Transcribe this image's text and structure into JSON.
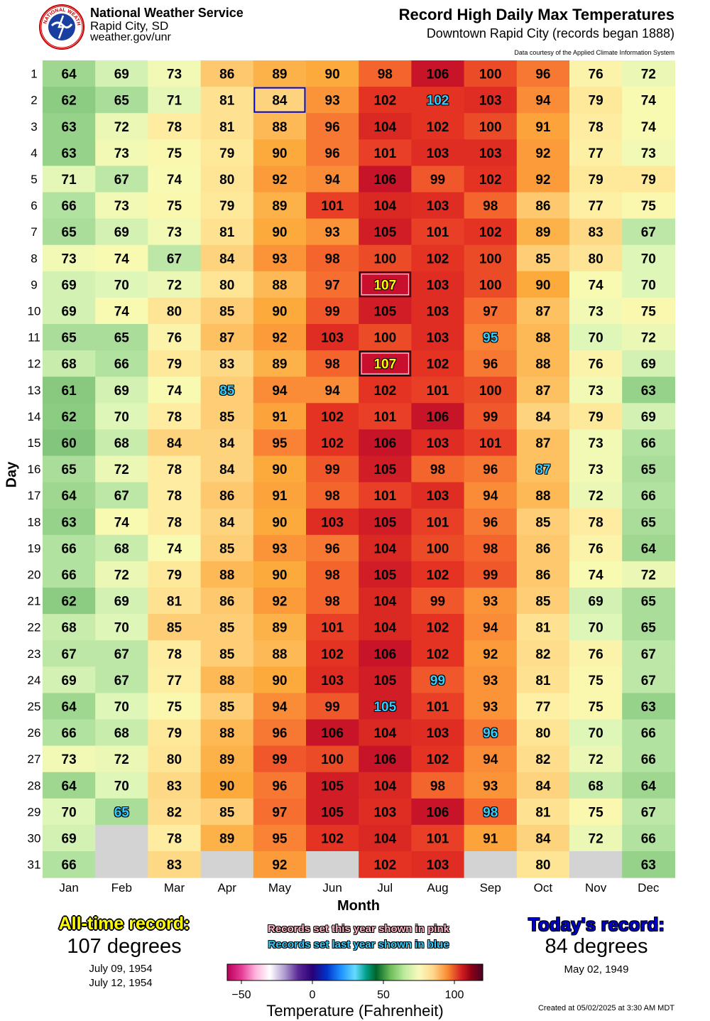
{
  "header": {
    "org_name": "National Weather Service",
    "office": "Rapid City, SD",
    "website": "weather.gov/unr",
    "logo_text": "NATIONAL WEATHER SERVICE",
    "title": "Record High Daily Max Temperatures",
    "subtitle": "Downtown Rapid City (records began 1888)",
    "credit": "Data courtesy of the Applied Climate Information System"
  },
  "chart_data": {
    "type": "heatmap",
    "title": "Record High Daily Max Temperatures",
    "subtitle": "Downtown Rapid City (records began 1888)",
    "xlabel": "Month",
    "ylabel": "Day",
    "months": [
      "Jan",
      "Feb",
      "Mar",
      "Apr",
      "May",
      "Jun",
      "Jul",
      "Aug",
      "Sep",
      "Oct",
      "Nov",
      "Dec"
    ],
    "days": [
      "1",
      "2",
      "3",
      "4",
      "5",
      "6",
      "7",
      "8",
      "9",
      "10",
      "11",
      "12",
      "13",
      "14",
      "15",
      "16",
      "17",
      "18",
      "19",
      "20",
      "21",
      "22",
      "23",
      "24",
      "25",
      "26",
      "27",
      "28",
      "29",
      "30",
      "31"
    ],
    "values": [
      [
        64,
        69,
        73,
        86,
        89,
        90,
        98,
        106,
        100,
        96,
        76,
        72
      ],
      [
        62,
        65,
        71,
        81,
        84,
        93,
        102,
        102,
        103,
        94,
        79,
        74
      ],
      [
        63,
        72,
        78,
        81,
        88,
        96,
        104,
        102,
        100,
        91,
        78,
        74
      ],
      [
        63,
        73,
        75,
        79,
        90,
        96,
        101,
        103,
        103,
        92,
        77,
        73
      ],
      [
        71,
        67,
        74,
        80,
        92,
        94,
        106,
        99,
        102,
        92,
        79,
        79
      ],
      [
        66,
        73,
        75,
        79,
        89,
        101,
        104,
        103,
        98,
        86,
        77,
        75
      ],
      [
        65,
        69,
        73,
        81,
        90,
        93,
        105,
        101,
        102,
        89,
        83,
        67
      ],
      [
        73,
        74,
        67,
        84,
        93,
        98,
        100,
        102,
        100,
        85,
        80,
        70
      ],
      [
        69,
        70,
        72,
        80,
        88,
        97,
        107,
        103,
        100,
        90,
        74,
        70
      ],
      [
        69,
        74,
        80,
        85,
        90,
        99,
        105,
        103,
        97,
        87,
        73,
        75
      ],
      [
        65,
        65,
        76,
        87,
        92,
        103,
        100,
        103,
        95,
        88,
        70,
        72
      ],
      [
        68,
        66,
        79,
        83,
        89,
        98,
        107,
        102,
        96,
        88,
        76,
        69
      ],
      [
        61,
        69,
        74,
        85,
        94,
        94,
        102,
        101,
        100,
        87,
        73,
        63
      ],
      [
        62,
        70,
        78,
        85,
        91,
        102,
        101,
        106,
        99,
        84,
        79,
        69
      ],
      [
        60,
        68,
        84,
        84,
        95,
        102,
        106,
        103,
        101,
        87,
        73,
        66
      ],
      [
        65,
        72,
        78,
        84,
        90,
        99,
        105,
        98,
        96,
        87,
        73,
        65
      ],
      [
        64,
        67,
        78,
        86,
        91,
        98,
        101,
        103,
        94,
        88,
        72,
        66
      ],
      [
        63,
        74,
        78,
        84,
        90,
        103,
        105,
        101,
        96,
        85,
        78,
        65
      ],
      [
        66,
        68,
        74,
        85,
        93,
        96,
        104,
        100,
        98,
        86,
        76,
        64
      ],
      [
        66,
        72,
        79,
        88,
        90,
        98,
        105,
        102,
        99,
        86,
        74,
        72
      ],
      [
        62,
        69,
        81,
        86,
        92,
        98,
        104,
        99,
        93,
        85,
        69,
        65
      ],
      [
        68,
        70,
        85,
        85,
        89,
        101,
        104,
        102,
        94,
        81,
        70,
        65
      ],
      [
        67,
        67,
        78,
        85,
        88,
        102,
        106,
        102,
        92,
        82,
        76,
        67
      ],
      [
        69,
        67,
        77,
        88,
        90,
        103,
        105,
        99,
        93,
        81,
        75,
        67
      ],
      [
        64,
        70,
        75,
        85,
        94,
        99,
        105,
        101,
        93,
        77,
        75,
        63
      ],
      [
        66,
        68,
        79,
        88,
        96,
        106,
        104,
        103,
        96,
        80,
        70,
        66
      ],
      [
        73,
        72,
        80,
        89,
        99,
        100,
        106,
        102,
        94,
        82,
        72,
        66
      ],
      [
        64,
        70,
        83,
        90,
        96,
        105,
        104,
        98,
        93,
        84,
        68,
        64
      ],
      [
        70,
        65,
        82,
        85,
        97,
        105,
        103,
        106,
        98,
        81,
        75,
        67
      ],
      [
        69,
        null,
        78,
        89,
        95,
        102,
        104,
        101,
        91,
        84,
        72,
        66
      ],
      [
        66,
        null,
        83,
        null,
        92,
        null,
        102,
        103,
        null,
        80,
        null,
        63
      ]
    ],
    "last_year_records": [
      [
        1,
        7
      ],
      [
        10,
        8
      ],
      [
        12,
        3
      ],
      [
        15,
        9
      ],
      [
        23,
        7
      ],
      [
        24,
        6
      ],
      [
        25,
        8
      ],
      [
        28,
        1
      ],
      [
        28,
        8
      ]
    ],
    "all_time_record_cells": [
      [
        8,
        6
      ],
      [
        11,
        6
      ]
    ],
    "today_cell": [
      1,
      4
    ],
    "colorbar": {
      "label": "Temperature (Fahrenheit)",
      "min": -60,
      "max": 120,
      "ticks": [
        -50,
        0,
        50,
        100
      ],
      "tick_labels": [
        "−50",
        "0",
        "50",
        "100"
      ]
    }
  },
  "records": {
    "all_time_title": "All-time record:",
    "all_time_value": "107 degrees",
    "all_time_dates": [
      "July 09, 1954",
      "July 12, 1954"
    ],
    "today_title": "Today's record:",
    "today_value": "84 degrees",
    "today_date": "May 02, 1949",
    "note_pink": "Records set this year shown in pink",
    "note_blue": "Records set last year shown in blue"
  },
  "footer": {
    "created": "Created at 05/02/2025 at 3:30 AM MDT"
  }
}
